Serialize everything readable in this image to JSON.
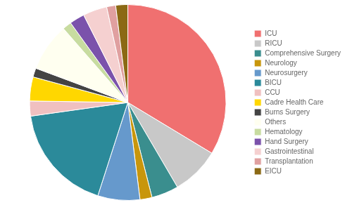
{
  "chart_data": {
    "type": "pie",
    "categories": [
      "ICU",
      "RICU",
      "Comprehensive Surgery",
      "Neurology",
      "Neurosurgery",
      "BICU",
      "CCU",
      "Cadre Health Care",
      "Burns Surgery",
      "Others",
      "Hematology",
      "Hand Surgery",
      "Gastrointestinal",
      "Transplantation",
      "EICU"
    ],
    "values": [
      34,
      8,
      4.5,
      2,
      7,
      18,
      2.5,
      4,
      1.5,
      8,
      1.5,
      2.5,
      4,
      1.5,
      2
    ],
    "colors": [
      "#F07070",
      "#C8C8C8",
      "#3A8E8E",
      "#C8960C",
      "#6699CC",
      "#2B8A9A",
      "#F0C0C0",
      "#FFD700",
      "#444444",
      "#FFFFF0",
      "#C8DCA0",
      "#7B52AB",
      "#F5D0D0",
      "#E0A0A0",
      "#8B6914"
    ],
    "legend": "right"
  }
}
